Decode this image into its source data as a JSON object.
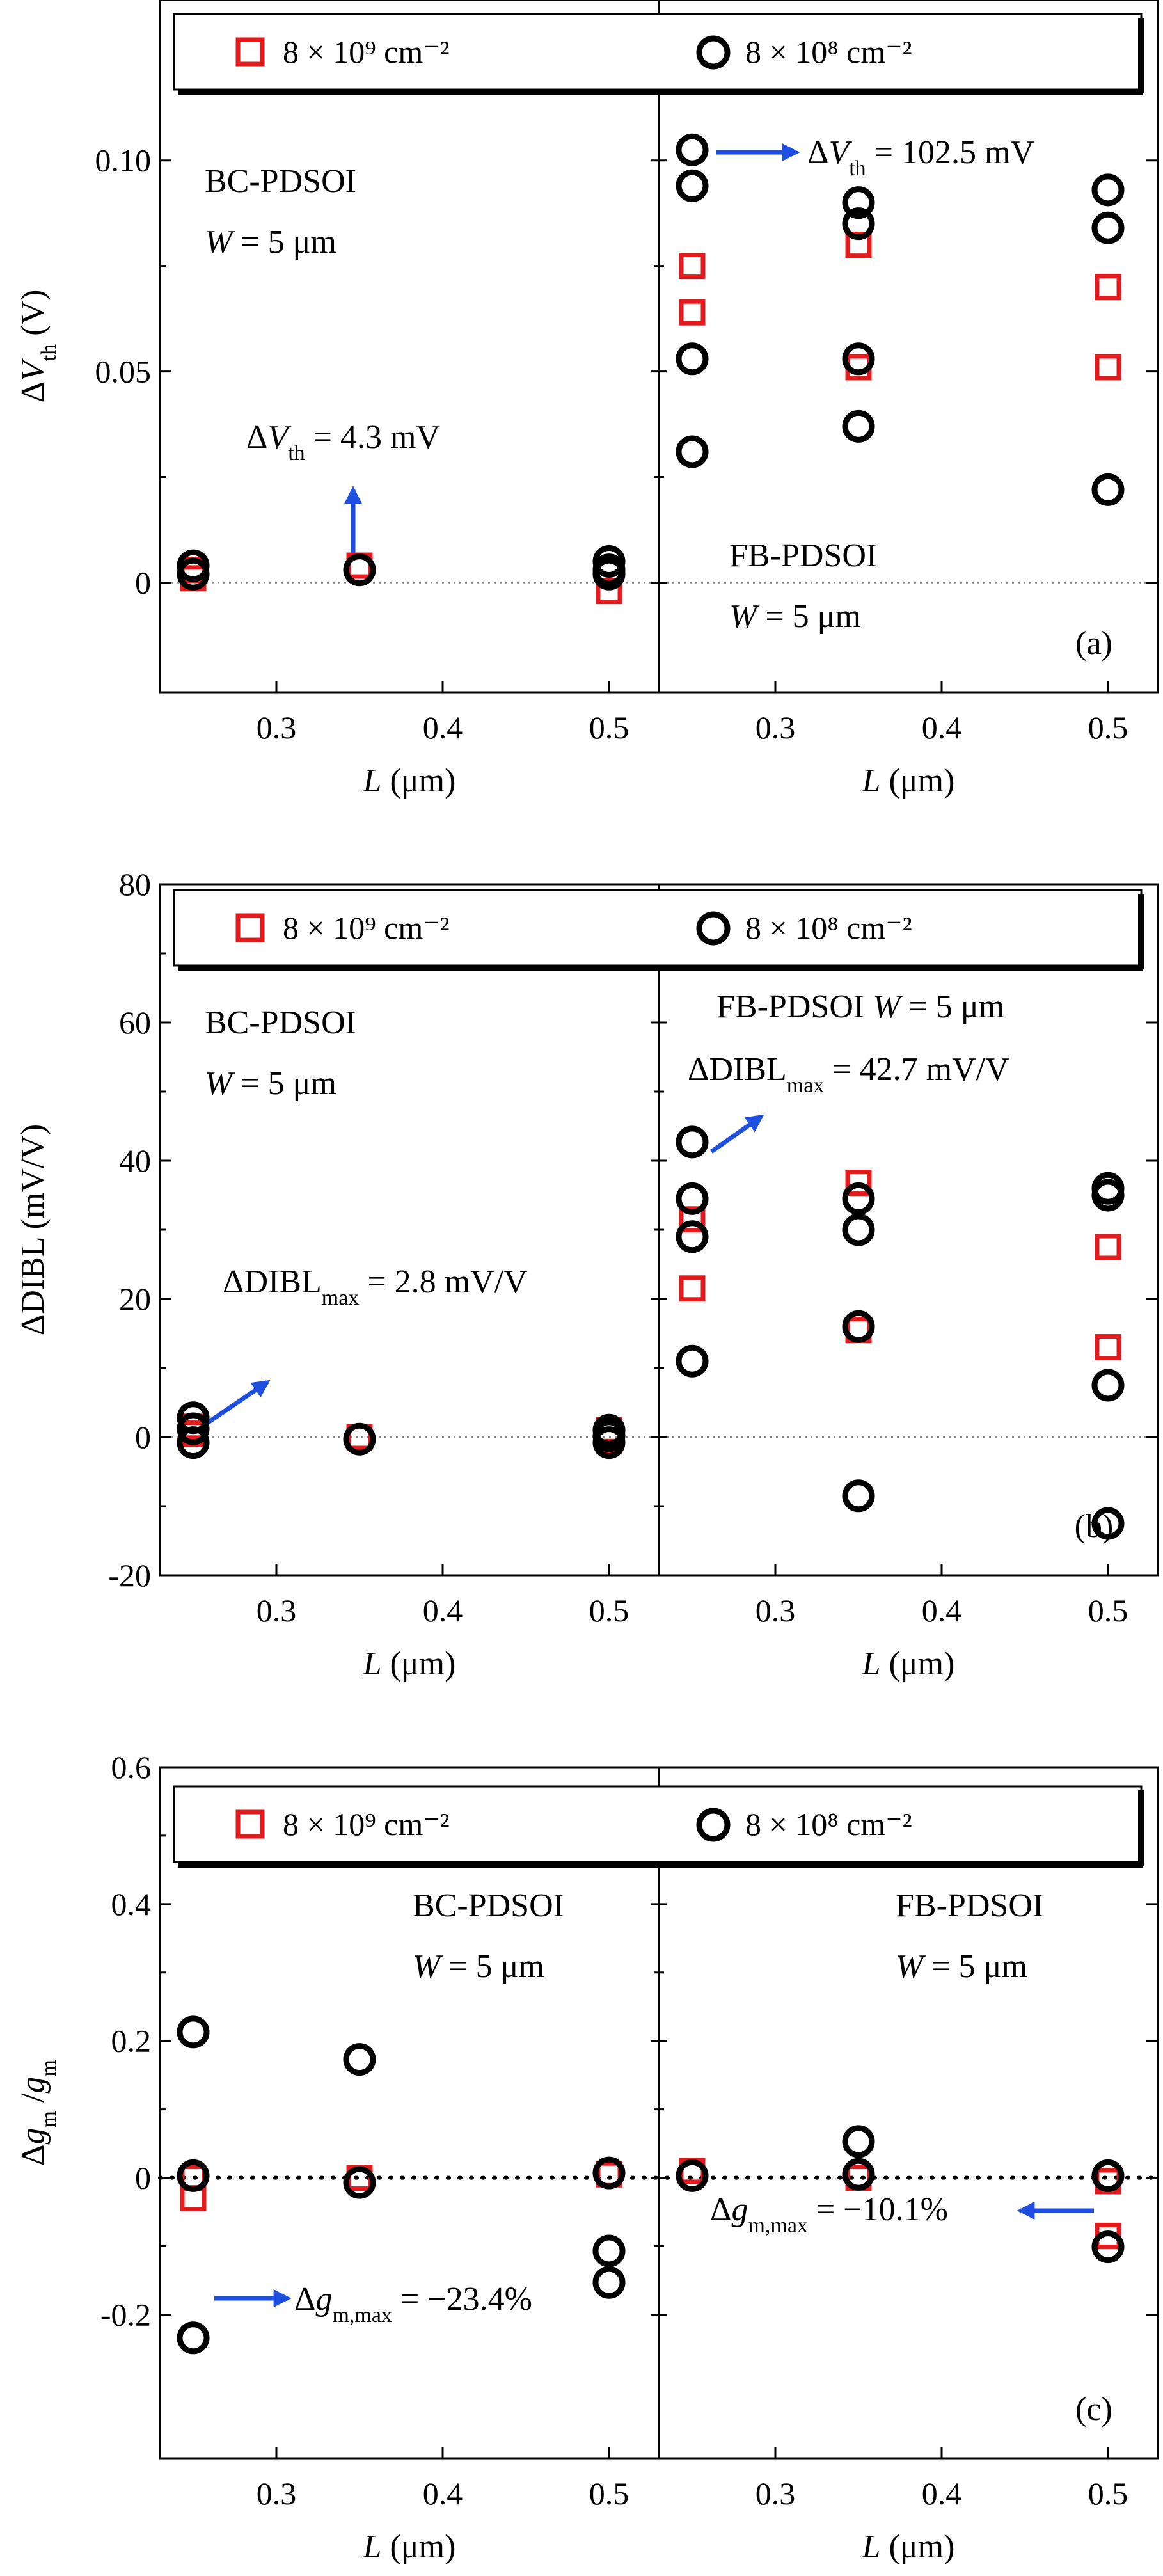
{
  "colors": {
    "series_1": "#e41a1c",
    "series_2": "#000000",
    "annotation_arrow": "#1f4fe0"
  },
  "chart_data": [
    {
      "id": "a",
      "type": "scatter",
      "panel_label": "(a)",
      "ylabel": "ΔV_th (V)",
      "yticks": [
        0,
        0.05,
        0.1
      ],
      "ytick_labels": [
        "0",
        "0.05",
        "0.10"
      ],
      "ylim": [
        -0.026,
        0.138
      ],
      "xlim": [
        0.23,
        0.53
      ],
      "xticks": [
        0.3,
        0.4,
        0.5
      ],
      "xtick_labels": [
        "0.3",
        "0.4",
        "0.5"
      ],
      "legend": [
        "8 × 10⁹ cm⁻²",
        "8 × 10⁸ cm⁻²"
      ],
      "zero_line": "dotted",
      "subpanels": [
        {
          "xlabel": "L (μm)",
          "label_lines": [
            "BC-PDSOI",
            "W = 5 μm"
          ],
          "annotation": "ΔV_th = 4.3 mV",
          "series": [
            {
              "marker": "square",
              "points": [
                [
                  0.25,
                  0.003
                ],
                [
                  0.25,
                  0.001
                ],
                [
                  0.35,
                  0.004
                ],
                [
                  0.5,
                  -0.002
                ]
              ]
            },
            {
              "marker": "circle",
              "points": [
                [
                  0.25,
                  0.004
                ],
                [
                  0.25,
                  0.002
                ],
                [
                  0.35,
                  0.003
                ],
                [
                  0.5,
                  0.005
                ],
                [
                  0.5,
                  0.003
                ],
                [
                  0.5,
                  0.002
                ]
              ]
            }
          ]
        },
        {
          "xlabel": "L (μm)",
          "label_lines": [
            "FB-PDSOI",
            "W = 5 μm"
          ],
          "annotation": "ΔV_th = 102.5 mV",
          "series": [
            {
              "marker": "square",
              "points": [
                [
                  0.25,
                  0.075
                ],
                [
                  0.25,
                  0.064
                ],
                [
                  0.35,
                  0.08
                ],
                [
                  0.35,
                  0.051
                ],
                [
                  0.5,
                  0.07
                ],
                [
                  0.5,
                  0.051
                ]
              ]
            },
            {
              "marker": "circle",
              "points": [
                [
                  0.25,
                  0.1025
                ],
                [
                  0.25,
                  0.094
                ],
                [
                  0.25,
                  0.053
                ],
                [
                  0.25,
                  0.031
                ],
                [
                  0.35,
                  0.09
                ],
                [
                  0.35,
                  0.085
                ],
                [
                  0.35,
                  0.053
                ],
                [
                  0.35,
                  0.037
                ],
                [
                  0.5,
                  0.093
                ],
                [
                  0.5,
                  0.084
                ],
                [
                  0.5,
                  0.022
                ]
              ]
            }
          ]
        }
      ]
    },
    {
      "id": "b",
      "type": "scatter",
      "panel_label": "(b)",
      "ylabel": "ΔDIBL (mV/V)",
      "yticks": [
        -20,
        0,
        20,
        40,
        60,
        80
      ],
      "ytick_labels": [
        "-20",
        "0",
        "20",
        "40",
        "60",
        "80"
      ],
      "ylim": [
        -20,
        80
      ],
      "xlim": [
        0.23,
        0.53
      ],
      "xticks": [
        0.3,
        0.4,
        0.5
      ],
      "xtick_labels": [
        "0.3",
        "0.4",
        "0.5"
      ],
      "legend": [
        "8 × 10⁹ cm⁻²",
        "8 × 10⁸ cm⁻²"
      ],
      "zero_line": "dotted",
      "subpanels": [
        {
          "xlabel": "L (μm)",
          "label_lines": [
            "BC-PDSOI",
            "W = 5 μm"
          ],
          "annotation": "ΔDIBL_max = 2.8 mV/V",
          "series": [
            {
              "marker": "square",
              "points": [
                [
                  0.25,
                  1.5
                ],
                [
                  0.25,
                  0.5
                ],
                [
                  0.35,
                  0.0
                ],
                [
                  0.5,
                  1.0
                ],
                [
                  0.5,
                  -0.5
                ]
              ]
            },
            {
              "marker": "circle",
              "points": [
                [
                  0.25,
                  2.8
                ],
                [
                  0.25,
                  1.2
                ],
                [
                  0.25,
                  -0.8
                ],
                [
                  0.35,
                  -0.3
                ],
                [
                  0.5,
                  1.0
                ],
                [
                  0.5,
                  0.2
                ],
                [
                  0.5,
                  -0.8
                ]
              ]
            }
          ]
        },
        {
          "xlabel": "L (μm)",
          "label_lines": [
            "FB-PDSOI W = 5 μm"
          ],
          "annotation": "ΔDIBL_max = 42.7 mV/V",
          "series": [
            {
              "marker": "square",
              "points": [
                [
                  0.25,
                  31.5
                ],
                [
                  0.25,
                  21.5
                ],
                [
                  0.35,
                  36.8
                ],
                [
                  0.35,
                  15.5
                ],
                [
                  0.5,
                  27.5
                ],
                [
                  0.5,
                  13.0
                ]
              ]
            },
            {
              "marker": "circle",
              "points": [
                [
                  0.25,
                  42.7
                ],
                [
                  0.25,
                  34.5
                ],
                [
                  0.25,
                  29.0
                ],
                [
                  0.25,
                  11.0
                ],
                [
                  0.35,
                  34.5
                ],
                [
                  0.35,
                  30.0
                ],
                [
                  0.35,
                  16.0
                ],
                [
                  0.35,
                  -8.5
                ],
                [
                  0.5,
                  36.0
                ],
                [
                  0.5,
                  35.0
                ],
                [
                  0.5,
                  7.5
                ],
                [
                  0.5,
                  -12.5
                ]
              ]
            }
          ]
        }
      ]
    },
    {
      "id": "c",
      "type": "scatter",
      "panel_label": "(c)",
      "ylabel": "Δg_m/g_m",
      "yticks": [
        -0.2,
        0,
        0.2,
        0.4,
        0.6
      ],
      "ytick_labels": [
        "-0.2",
        "0",
        "0.2",
        "0.4",
        "0.6"
      ],
      "ylim": [
        -0.41,
        0.6
      ],
      "xlim": [
        0.23,
        0.53
      ],
      "xticks": [
        0.3,
        0.4,
        0.5
      ],
      "xtick_labels": [
        "0.3",
        "0.4",
        "0.5"
      ],
      "legend": [
        "8 × 10⁹ cm⁻²",
        "8 × 10⁸ cm⁻²"
      ],
      "zero_line": "dotted",
      "subpanels": [
        {
          "xlabel": "L (μm)",
          "label_lines": [
            "BC-PDSOI",
            "W = 5 μm"
          ],
          "annotation": "Δg_m,max = −23.4%",
          "series": [
            {
              "marker": "square",
              "points": [
                [
                  0.25,
                  0.0
                ],
                [
                  0.25,
                  -0.03
                ],
                [
                  0.35,
                  0.0
                ],
                [
                  0.5,
                  0.005
                ]
              ]
            },
            {
              "marker": "circle",
              "points": [
                [
                  0.25,
                  0.213
                ],
                [
                  0.25,
                  0.003
                ],
                [
                  0.25,
                  -0.234
                ],
                [
                  0.35,
                  0.173
                ],
                [
                  0.35,
                  -0.007
                ],
                [
                  0.5,
                  0.007
                ],
                [
                  0.5,
                  -0.107
                ],
                [
                  0.5,
                  -0.153
                ]
              ]
            }
          ]
        },
        {
          "xlabel": "L (μm)",
          "label_lines": [
            "FB-PDSOI",
            "W = 5 μm"
          ],
          "annotation": "Δg_m,max = −10.1%",
          "series": [
            {
              "marker": "square",
              "points": [
                [
                  0.25,
                  0.01
                ],
                [
                  0.35,
                  0.0
                ],
                [
                  0.5,
                  -0.005
                ],
                [
                  0.5,
                  -0.085
                ]
              ]
            },
            {
              "marker": "circle",
              "points": [
                [
                  0.25,
                  0.003
                ],
                [
                  0.35,
                  0.053
                ],
                [
                  0.35,
                  0.005
                ],
                [
                  0.5,
                  0.003
                ],
                [
                  0.5,
                  -0.101
                ]
              ]
            }
          ]
        }
      ]
    }
  ]
}
